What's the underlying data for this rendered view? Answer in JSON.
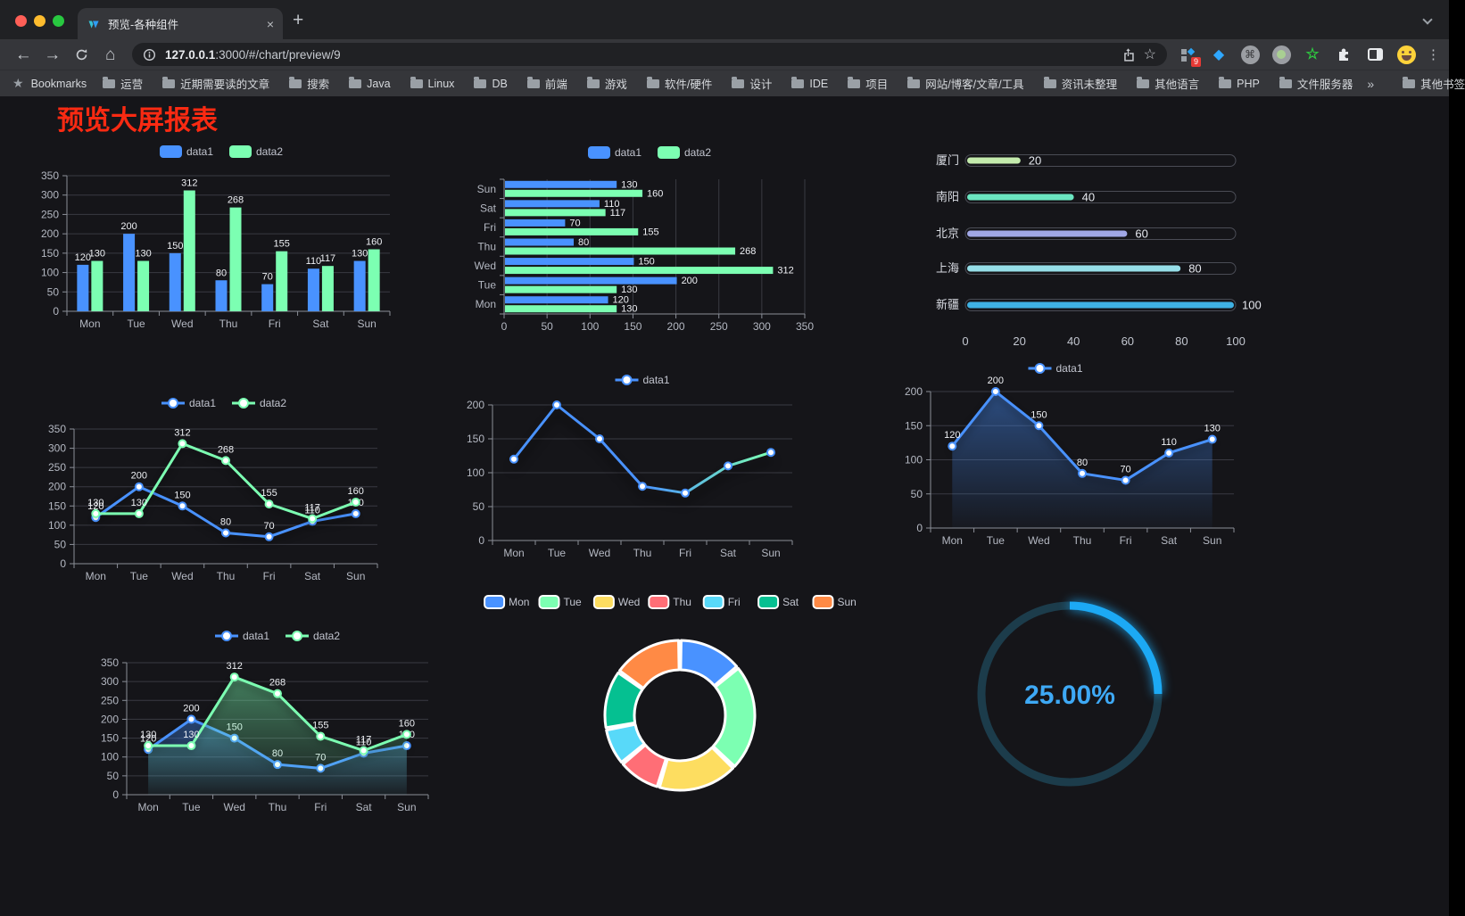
{
  "browser": {
    "tab_title": "预览-各种组件",
    "url_host": "127.0.0.1",
    "url_rest": ":3000/#/chart/preview/9",
    "bookmarks_label": "Bookmarks",
    "bookmarks": [
      "运营",
      "近期需要读的文章",
      "搜索",
      "Java",
      "Linux",
      "DB",
      "前端",
      "游戏",
      "软件/硬件",
      "设计",
      "IDE",
      "项目",
      "网站/博客/文章/工具",
      "资讯未整理",
      "其他语言",
      "PHP",
      "文件服务器"
    ],
    "other_bookmarks": "其他书签",
    "extension_badge": "9",
    "icons": {
      "close": "×",
      "new_tab": "+",
      "back": "←",
      "forward": "→",
      "home": "⌂",
      "star": "☆",
      "command": "⌘",
      "green_star": "☆",
      "gem": "◆",
      "kebab": "⋮",
      "bookmarks_star": "★",
      "overflow": "»"
    }
  },
  "page": {
    "title": "预览大屏报表",
    "title_color": "#fa2a12",
    "background": "#151519"
  },
  "chart_data": [
    {
      "id": "bar-vertical",
      "type": "bar",
      "categories": [
        "Mon",
        "Tue",
        "Wed",
        "Thu",
        "Fri",
        "Sat",
        "Sun"
      ],
      "series": [
        {
          "name": "data1",
          "color": "#4992ff",
          "values": [
            120,
            200,
            150,
            80,
            70,
            110,
            130
          ]
        },
        {
          "name": "data2",
          "color": "#7cffb2",
          "values": [
            130,
            130,
            312,
            268,
            155,
            117,
            160
          ]
        }
      ],
      "ylim": [
        0,
        350
      ],
      "ystep": 50,
      "legend": "top",
      "value_labels": true,
      "grid": true
    },
    {
      "id": "bar-horizontal",
      "type": "bar-horizontal",
      "categories": [
        "Mon",
        "Tue",
        "Wed",
        "Thu",
        "Fri",
        "Sat",
        "Sun"
      ],
      "order_top_to_bottom": [
        "Sun",
        "Sat",
        "Fri",
        "Thu",
        "Wed",
        "Tue",
        "Mon"
      ],
      "series": [
        {
          "name": "data1",
          "color": "#4992ff",
          "values": [
            120,
            200,
            150,
            80,
            70,
            110,
            130
          ]
        },
        {
          "name": "data2",
          "color": "#7cffb2",
          "values": [
            130,
            130,
            312,
            268,
            155,
            117,
            160
          ]
        }
      ],
      "xlim": [
        0,
        350
      ],
      "xstep": 50,
      "legend": "top",
      "value_labels": true,
      "grid": true
    },
    {
      "id": "progress",
      "type": "progress-bars",
      "items": [
        {
          "label": "厦门",
          "value": 20,
          "color": "#c4ebad"
        },
        {
          "label": "南阳",
          "value": 40,
          "color": "#6be6c1"
        },
        {
          "label": "北京",
          "value": 60,
          "color": "#a0a7e6"
        },
        {
          "label": "上海",
          "value": 80,
          "color": "#96dee8"
        },
        {
          "label": "新疆",
          "value": 100,
          "color": "#3fb1e3"
        }
      ],
      "xlim": [
        0,
        100
      ],
      "xticks": [
        0,
        20,
        40,
        60,
        80,
        100
      ]
    },
    {
      "id": "line-dual",
      "type": "line",
      "categories": [
        "Mon",
        "Tue",
        "Wed",
        "Thu",
        "Fri",
        "Sat",
        "Sun"
      ],
      "series": [
        {
          "name": "data1",
          "color": "#4992ff",
          "values": [
            120,
            200,
            150,
            80,
            70,
            110,
            130
          ]
        },
        {
          "name": "data2",
          "color": "#7cffb2",
          "values": [
            130,
            130,
            312,
            268,
            155,
            117,
            160
          ]
        }
      ],
      "ylim": [
        0,
        350
      ],
      "ystep": 50,
      "legend": "top",
      "value_labels": true,
      "grid": true
    },
    {
      "id": "line-gradient",
      "type": "line",
      "categories": [
        "Mon",
        "Tue",
        "Wed",
        "Thu",
        "Fri",
        "Sat",
        "Sun"
      ],
      "series": [
        {
          "name": "data1",
          "color": "#4992ff",
          "gradient": [
            "#4992ff",
            "#7cffb2"
          ],
          "values": [
            120,
            200,
            150,
            80,
            70,
            110,
            130
          ]
        }
      ],
      "ylim": [
        0,
        200
      ],
      "ystep": 50,
      "legend": "top",
      "value_labels": false,
      "shadow": true,
      "grid": true
    },
    {
      "id": "area-single",
      "type": "area",
      "categories": [
        "Mon",
        "Tue",
        "Wed",
        "Thu",
        "Fri",
        "Sat",
        "Sun"
      ],
      "series": [
        {
          "name": "data1",
          "color": "#4992ff",
          "values": [
            120,
            200,
            150,
            80,
            70,
            110,
            130
          ]
        }
      ],
      "ylim": [
        0,
        200
      ],
      "ystep": 50,
      "legend": "top",
      "value_labels": true,
      "area": true,
      "grid": true
    },
    {
      "id": "area-dual",
      "type": "area",
      "categories": [
        "Mon",
        "Tue",
        "Wed",
        "Thu",
        "Fri",
        "Sat",
        "Sun"
      ],
      "series": [
        {
          "name": "data1",
          "color": "#4992ff",
          "values": [
            120,
            200,
            150,
            80,
            70,
            110,
            130
          ]
        },
        {
          "name": "data2",
          "color": "#7cffb2",
          "values": [
            130,
            130,
            312,
            268,
            155,
            117,
            160
          ]
        }
      ],
      "ylim": [
        0,
        350
      ],
      "ystep": 50,
      "legend": "top",
      "value_labels": true,
      "area": true,
      "grid": true
    },
    {
      "id": "donut",
      "type": "pie",
      "labels": [
        "Mon",
        "Tue",
        "Wed",
        "Thu",
        "Fri",
        "Sat",
        "Sun"
      ],
      "values": [
        120,
        200,
        150,
        80,
        70,
        110,
        130
      ],
      "colors": [
        "#4992ff",
        "#7cffb2",
        "#fddd60",
        "#ff6e76",
        "#58d9f9",
        "#05c091",
        "#ff8a45"
      ],
      "legend": "top",
      "inner_radius_ratio": 0.6,
      "border_color": "#ffffff"
    },
    {
      "id": "gauge",
      "type": "gauge",
      "value": 25,
      "display": "25.00%",
      "color": "#1ca9f4",
      "track_color": "#1c3c4b",
      "text_color": "#3ea9f5"
    }
  ]
}
